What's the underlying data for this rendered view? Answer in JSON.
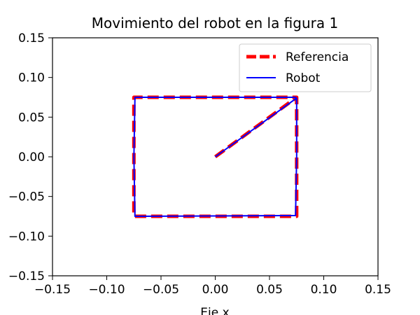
{
  "chart_data": {
    "type": "line",
    "title": "Movimiento del robot en la figura 1",
    "xlabel": "Eje x",
    "ylabel": "",
    "xlim": [
      -0.15,
      0.15
    ],
    "ylim": [
      -0.15,
      0.15
    ],
    "xticks": [
      -0.15,
      -0.1,
      -0.05,
      0.0,
      0.05,
      0.1,
      0.15
    ],
    "yticks": [
      -0.15,
      -0.1,
      -0.05,
      0.0,
      0.05,
      0.1,
      0.15
    ],
    "xtick_labels": [
      "−0.15",
      "−0.10",
      "−0.05",
      "0.00",
      "0.05",
      "0.10",
      "0.15"
    ],
    "ytick_labels": [
      "−0.15",
      "−0.10",
      "−0.05",
      "0.00",
      "0.05",
      "0.10",
      "0.15"
    ],
    "grid": false,
    "legend_position": "top-right",
    "series": [
      {
        "name": "Referencia",
        "color": "#ff0000",
        "style": "dashed",
        "x": [
          0.0,
          0.075,
          0.075,
          -0.075,
          -0.075,
          0.075,
          0.075
        ],
        "y": [
          0.0,
          0.075,
          -0.075,
          -0.075,
          0.075,
          0.075,
          0.07
        ]
      },
      {
        "name": "Robot",
        "color": "#0000ff",
        "style": "solid",
        "x": [
          0.0,
          0.075,
          0.075,
          0.074,
          -0.074,
          -0.075,
          -0.074,
          0.074,
          0.075
        ],
        "y": [
          0.0,
          0.074,
          0.0,
          -0.074,
          -0.075,
          0.0,
          0.075,
          0.075,
          0.07
        ]
      }
    ]
  }
}
